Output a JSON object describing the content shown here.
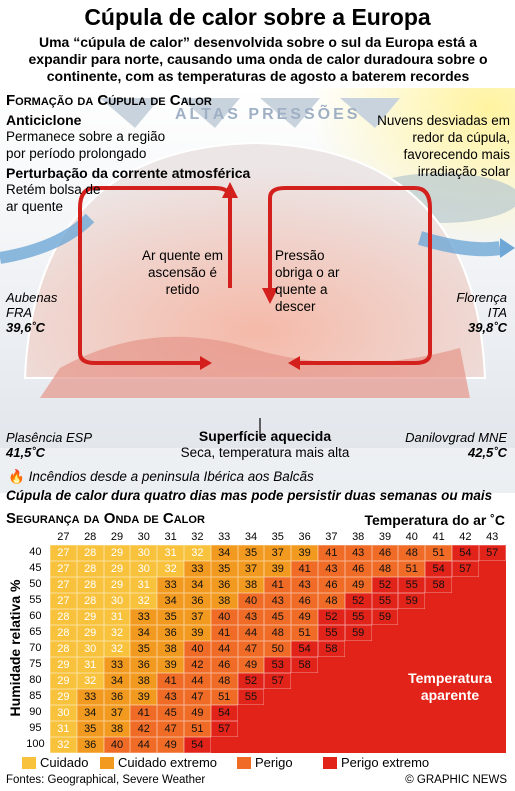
{
  "header": {
    "title": "Cúpula de calor sobre a Europa",
    "subtitle": "Uma “cúpula de calor” desenvolvida sobre o sul da Europa está a expandir para norte, causando uma onda de calor duradoura sobre o continente, com as temperaturas de agosto a baterem recordes"
  },
  "diagram": {
    "section_title": "Formação da Cúpula de Calor",
    "pressure": "ALTAS PRESSÕES",
    "anticyclone": {
      "title": "Anticiclone",
      "text": "Permanece sobre a região por período prolongado"
    },
    "jet": {
      "title": "Perturbação da corrente atmosférica",
      "text": "Retém bolsa de ar quente"
    },
    "clouds": "Nuvens desviadas em redor da cúpula, favorecendo mais irradiação solar",
    "rising": "Ar quente em ascensão é retido",
    "sinking": "Pressão obriga o ar quente a descer",
    "surface": {
      "title": "Superfície aquecida",
      "text": "Seca, temperatura mais alta"
    },
    "cities": [
      {
        "city": "Aubenas",
        "country": "FRA",
        "temp": "39,6˚C"
      },
      {
        "city": "Florença",
        "country": "ITA",
        "temp": "39,8˚C"
      },
      {
        "city": "Plasência",
        "country": "ESP",
        "temp": "41,5˚C"
      },
      {
        "city": "Danilovgrad",
        "country": "MNE",
        "temp": "42,5˚C"
      }
    ],
    "fires": "Incêndios desde a peninsula Ibérica aos Balcãs",
    "note": "Cúpula de calor dura quatro dias mas pode persistir duas semanas ou mais"
  },
  "table": {
    "title": "Segurança da Onda de Calor",
    "x_label": "Temperatura do ar ˚C",
    "y_label": "Humidade relativa %",
    "columns": [
      27,
      28,
      29,
      30,
      31,
      32,
      33,
      34,
      35,
      36,
      37,
      38,
      39,
      40,
      41,
      42,
      43
    ],
    "row_labels": [
      40,
      45,
      50,
      55,
      60,
      65,
      70,
      75,
      80,
      85,
      90,
      95,
      100
    ],
    "rows": [
      [
        27,
        28,
        29,
        30,
        31,
        32,
        34,
        35,
        37,
        39,
        41,
        43,
        46,
        48,
        51,
        54,
        57
      ],
      [
        27,
        28,
        29,
        30,
        32,
        33,
        35,
        37,
        39,
        41,
        43,
        46,
        48,
        51,
        54,
        57
      ],
      [
        27,
        28,
        29,
        31,
        33,
        34,
        36,
        38,
        41,
        43,
        46,
        49,
        52,
        55,
        58
      ],
      [
        27,
        28,
        30,
        32,
        34,
        36,
        38,
        40,
        43,
        46,
        48,
        52,
        55,
        59
      ],
      [
        28,
        29,
        31,
        33,
        35,
        37,
        40,
        43,
        45,
        49,
        52,
        55,
        59
      ],
      [
        28,
        29,
        32,
        34,
        36,
        39,
        41,
        44,
        48,
        51,
        55,
        59
      ],
      [
        28,
        30,
        32,
        35,
        38,
        40,
        44,
        47,
        50,
        54,
        58
      ],
      [
        29,
        31,
        33,
        36,
        39,
        42,
        46,
        49,
        53,
        58
      ],
      [
        29,
        32,
        34,
        38,
        41,
        44,
        48,
        52,
        57
      ],
      [
        29,
        33,
        36,
        39,
        43,
        47,
        51,
        55
      ],
      [
        30,
        34,
        37,
        41,
        45,
        49,
        54
      ],
      [
        31,
        35,
        38,
        42,
        47,
        51,
        57
      ],
      [
        32,
        36,
        40,
        44,
        49,
        54
      ]
    ],
    "overlay": "Temperatura aparente",
    "legend": [
      {
        "label": "Cuidado",
        "color": "#f8c23c"
      },
      {
        "label": "Cuidado extremo",
        "color": "#f29a1f"
      },
      {
        "label": "Perigo",
        "color": "#ef6b26"
      },
      {
        "label": "Perigo extremo",
        "color": "#e2231a"
      }
    ]
  },
  "footer": {
    "sources": "Fontes: Geographical, Severe Weather",
    "credit": "© GRAPHIC NEWS"
  }
}
